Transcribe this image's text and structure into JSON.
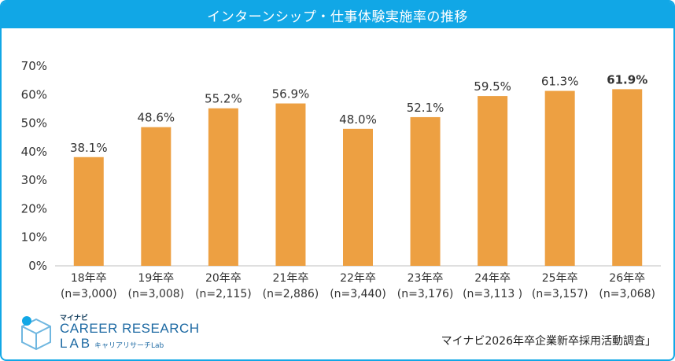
{
  "header": {
    "title": "インターンシップ・仕事体験実施率の推移"
  },
  "source": "マイナビ2026年卒企業新卒採用活動調査」",
  "logo": {
    "top": "マイナビ",
    "main": "CAREER RESEARCH",
    "lab": "LAB",
    "sub": "キャリアリサーチLab"
  },
  "colors": {
    "header": "#11a7e6",
    "bar": "#eda042",
    "highlight": "#c00000",
    "frame": "#11a7e6"
  },
  "chart_data": {
    "type": "bar",
    "categories": [
      "18年卒",
      "19年卒",
      "20年卒",
      "21年卒",
      "22年卒",
      "23年卒",
      "24年卒",
      "25年卒",
      "26年卒"
    ],
    "sample_sizes": [
      "(n=3,000)",
      "(n=3,008)",
      "(n=2,115)",
      "(n=2,886)",
      "(n=3,440)",
      "(n=3,176)",
      "(n=3,113 )",
      "(n=3,157)",
      "(n=3,068)"
    ],
    "values": [
      38.1,
      48.6,
      55.2,
      56.9,
      48.0,
      52.1,
      59.5,
      61.3,
      61.9
    ],
    "value_labels": [
      "38.1%",
      "48.6%",
      "55.2%",
      "56.9%",
      "48.0%",
      "52.1%",
      "59.5%",
      "61.3%",
      "61.9%"
    ],
    "highlight_index": 8,
    "yticks": [
      "0%",
      "10%",
      "20%",
      "30%",
      "40%",
      "50%",
      "60%",
      "70%"
    ],
    "ylim": [
      0,
      70
    ],
    "grid": false,
    "legend": "none"
  }
}
